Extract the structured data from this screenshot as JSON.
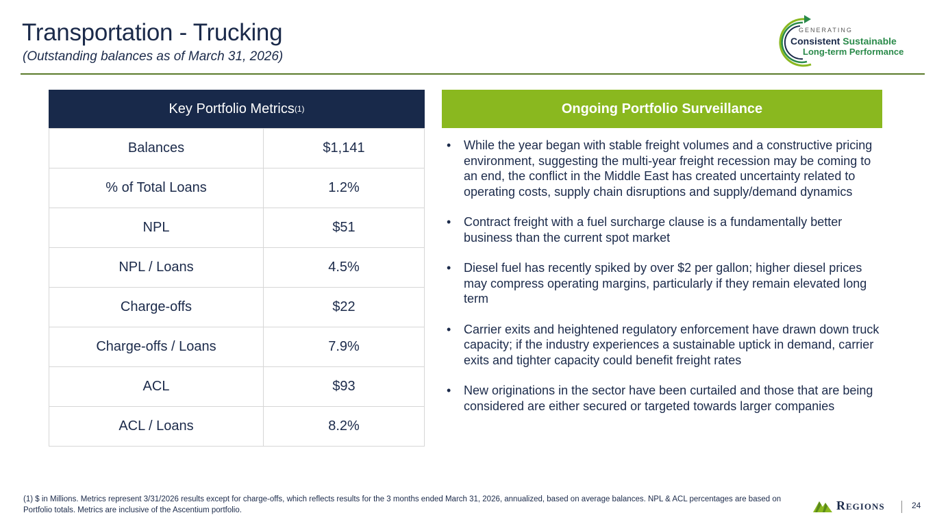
{
  "header": {
    "title": "Transportation - Trucking",
    "subtitle": "(Outstanding balances as of March 31, 2026)"
  },
  "logo": {
    "generating": "GENERATING",
    "consistent": "Consistent",
    "sustainable": "Sustainable",
    "long_term": "Long-term Performance",
    "colors": {
      "navy": "#1b2a4a",
      "green": "#2a8a4a",
      "lime": "#8ab81f"
    }
  },
  "metrics": {
    "header": "Key Portfolio Metrics",
    "header_sup": "(1)",
    "rows": [
      {
        "label": "Balances",
        "value": "$1,141"
      },
      {
        "label": "% of Total Loans",
        "value": "1.2%"
      },
      {
        "label": "NPL",
        "value": "$51"
      },
      {
        "label": "NPL / Loans",
        "value": "4.5%"
      },
      {
        "label": "Charge-offs",
        "value": "$22"
      },
      {
        "label": "Charge-offs / Loans",
        "value": "7.9%"
      },
      {
        "label": "ACL",
        "value": "$93"
      },
      {
        "label": "ACL / Loans",
        "value": "8.2%"
      }
    ]
  },
  "surveillance": {
    "header": "Ongoing Portfolio Surveillance",
    "bullets": [
      "While the year began with stable freight volumes and a constructive pricing environment, suggesting the multi-year freight recession may be coming to an end, the conflict in the Middle East has created uncertainty related to operating costs, supply chain disruptions and supply/demand dynamics",
      "Contract freight with a fuel surcharge clause is a fundamentally better business than the current spot market",
      "Diesel fuel has recently spiked by over $2 per gallon; higher diesel prices may compress operating margins, particularly if they remain elevated long term",
      "Carrier exits and heightened regulatory enforcement have drawn down truck capacity; if the industry experiences a sustainable uptick in demand, carrier exits and tighter capacity could benefit freight rates",
      "New originations in the sector have been curtailed and those that are being considered are either secured or targeted towards larger companies"
    ]
  },
  "footer": {
    "footnote": "(1) $ in Millions. Metrics represent 3/31/2026 results except for charge-offs, which reflects results for the 3 months ended March 31, 2026, annualized, based on average balances. NPL & ACL percentages are based on Portfolio totals. Metrics are inclusive of the Ascentium portfolio.",
    "brand": "Regions",
    "page_number": "24",
    "bullet_glyph": "•"
  }
}
